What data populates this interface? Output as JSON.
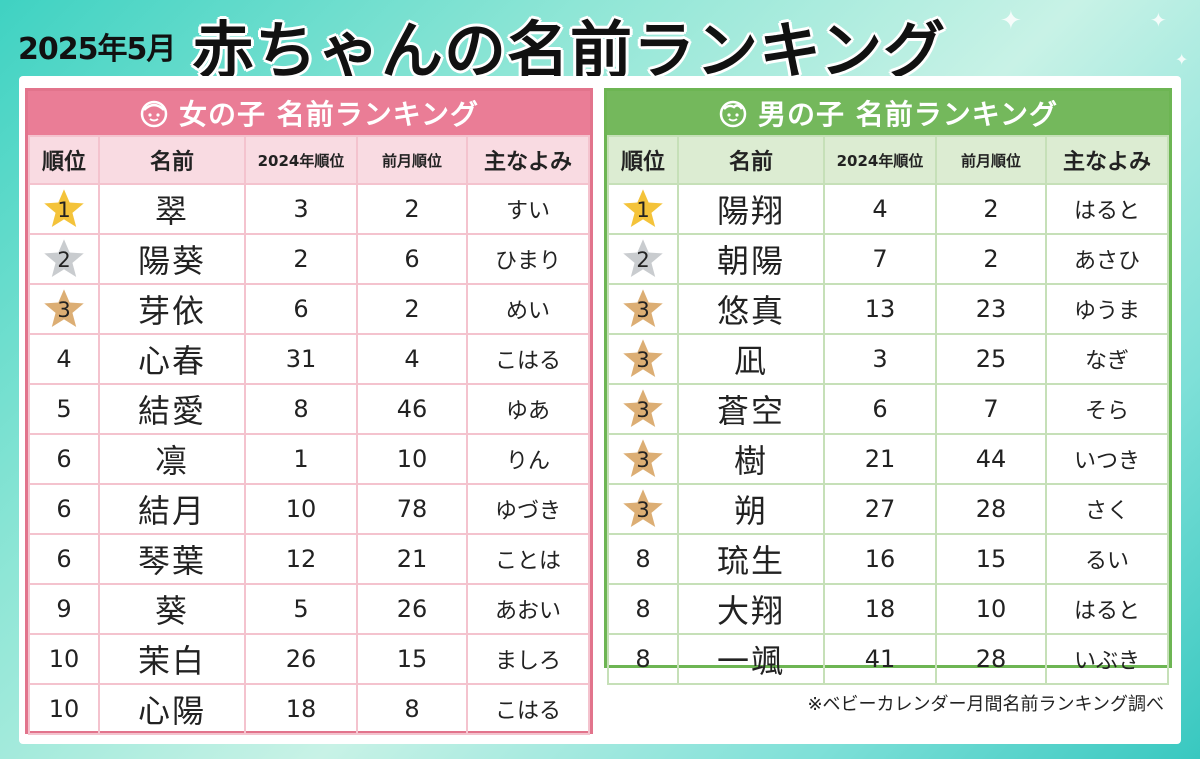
{
  "header": {
    "date": "2025年5月",
    "title": "赤ちゃんの名前ランキング"
  },
  "colors": {
    "gold": "#f4c33a",
    "silver": "#c9cccf",
    "bronze": "#dcae74",
    "girls_accent": "#ea7d96",
    "boys_accent": "#74b85c"
  },
  "columns": [
    "順位",
    "名前",
    "2024年順位",
    "前月順位",
    "主なよみ"
  ],
  "girls": {
    "title": "女の子 名前ランキング",
    "icon": "girl-face-icon",
    "rows": [
      {
        "rank": "1",
        "name": "翠",
        "y2024": "3",
        "prev": "2",
        "yomi": "すい",
        "medal": "gold"
      },
      {
        "rank": "2",
        "name": "陽葵",
        "y2024": "2",
        "prev": "6",
        "yomi": "ひまり",
        "medal": "silver"
      },
      {
        "rank": "3",
        "name": "芽依",
        "y2024": "6",
        "prev": "2",
        "yomi": "めい",
        "medal": "bronze"
      },
      {
        "rank": "4",
        "name": "心春",
        "y2024": "31",
        "prev": "4",
        "yomi": "こはる",
        "medal": ""
      },
      {
        "rank": "5",
        "name": "結愛",
        "y2024": "8",
        "prev": "46",
        "yomi": "ゆあ",
        "medal": ""
      },
      {
        "rank": "6",
        "name": "凛",
        "y2024": "1",
        "prev": "10",
        "yomi": "りん",
        "medal": ""
      },
      {
        "rank": "6",
        "name": "結月",
        "y2024": "10",
        "prev": "78",
        "yomi": "ゆづき",
        "medal": ""
      },
      {
        "rank": "6",
        "name": "琴葉",
        "y2024": "12",
        "prev": "21",
        "yomi": "ことは",
        "medal": ""
      },
      {
        "rank": "9",
        "name": "葵",
        "y2024": "5",
        "prev": "26",
        "yomi": "あおい",
        "medal": ""
      },
      {
        "rank": "10",
        "name": "茉白",
        "y2024": "26",
        "prev": "15",
        "yomi": "ましろ",
        "medal": ""
      },
      {
        "rank": "10",
        "name": "心陽",
        "y2024": "18",
        "prev": "8",
        "yomi": "こはる",
        "medal": ""
      }
    ]
  },
  "boys": {
    "title": "男の子 名前ランキング",
    "icon": "boy-face-icon",
    "rows": [
      {
        "rank": "1",
        "name": "陽翔",
        "y2024": "4",
        "prev": "2",
        "yomi": "はると",
        "medal": "gold"
      },
      {
        "rank": "2",
        "name": "朝陽",
        "y2024": "7",
        "prev": "2",
        "yomi": "あさひ",
        "medal": "silver"
      },
      {
        "rank": "3",
        "name": "悠真",
        "y2024": "13",
        "prev": "23",
        "yomi": "ゆうま",
        "medal": "bronze"
      },
      {
        "rank": "3",
        "name": "凪",
        "y2024": "3",
        "prev": "25",
        "yomi": "なぎ",
        "medal": "bronze"
      },
      {
        "rank": "3",
        "name": "蒼空",
        "y2024": "6",
        "prev": "7",
        "yomi": "そら",
        "medal": "bronze"
      },
      {
        "rank": "3",
        "name": "樹",
        "y2024": "21",
        "prev": "44",
        "yomi": "いつき",
        "medal": "bronze"
      },
      {
        "rank": "3",
        "name": "朔",
        "y2024": "27",
        "prev": "28",
        "yomi": "さく",
        "medal": "bronze"
      },
      {
        "rank": "8",
        "name": "琉生",
        "y2024": "16",
        "prev": "15",
        "yomi": "るい",
        "medal": ""
      },
      {
        "rank": "8",
        "name": "大翔",
        "y2024": "18",
        "prev": "10",
        "yomi": "はると",
        "medal": ""
      },
      {
        "rank": "8",
        "name": "一颯",
        "y2024": "41",
        "prev": "28",
        "yomi": "いぶき",
        "medal": ""
      }
    ]
  },
  "footnote": "※ベビーカレンダー月間名前ランキング調べ"
}
